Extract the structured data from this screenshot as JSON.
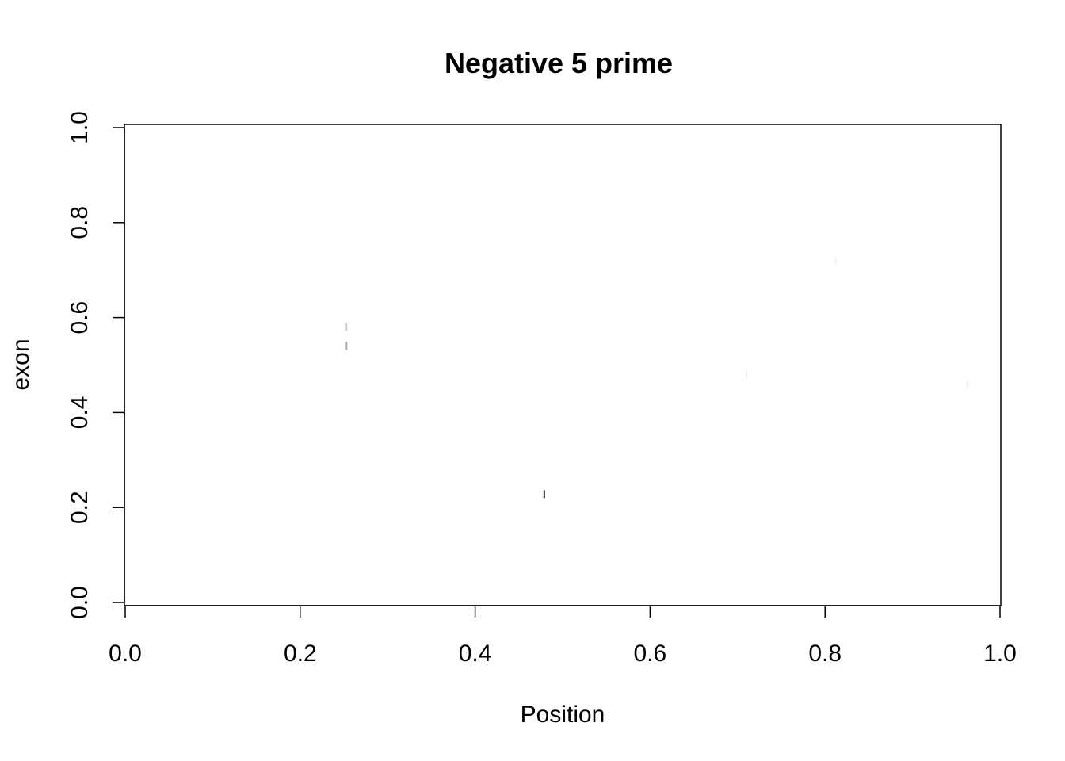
{
  "chart_data": {
    "type": "image",
    "title": "Negative 5 prime",
    "x_label": "Position",
    "y_label": "exon",
    "x": [
      0.479,
      0.253,
      0.253,
      0.71,
      0.963,
      0.812
    ],
    "y": [
      0.228,
      0.54,
      0.58,
      0.48,
      0.46,
      0.72
    ],
    "colors": [
      "#222222",
      "#aaaaaa",
      "#cccccc",
      "#eeeeee",
      "#eeeeee",
      "#f2f2f2"
    ],
    "xlim": [
      0.0,
      1.0
    ],
    "xticks": [
      {
        "value": 0,
        "label": "0.0"
      },
      0.2,
      0.4,
      0.6,
      0.8,
      {
        "value": 1,
        "label": "1.0"
      }
    ],
    "ylim": [
      0.0,
      1.0
    ],
    "yticks": [
      {
        "value": 0,
        "label": "0.0"
      },
      0.2,
      0.4,
      0.6,
      0.8,
      {
        "value": 1,
        "label": "1.0"
      }
    ]
  }
}
